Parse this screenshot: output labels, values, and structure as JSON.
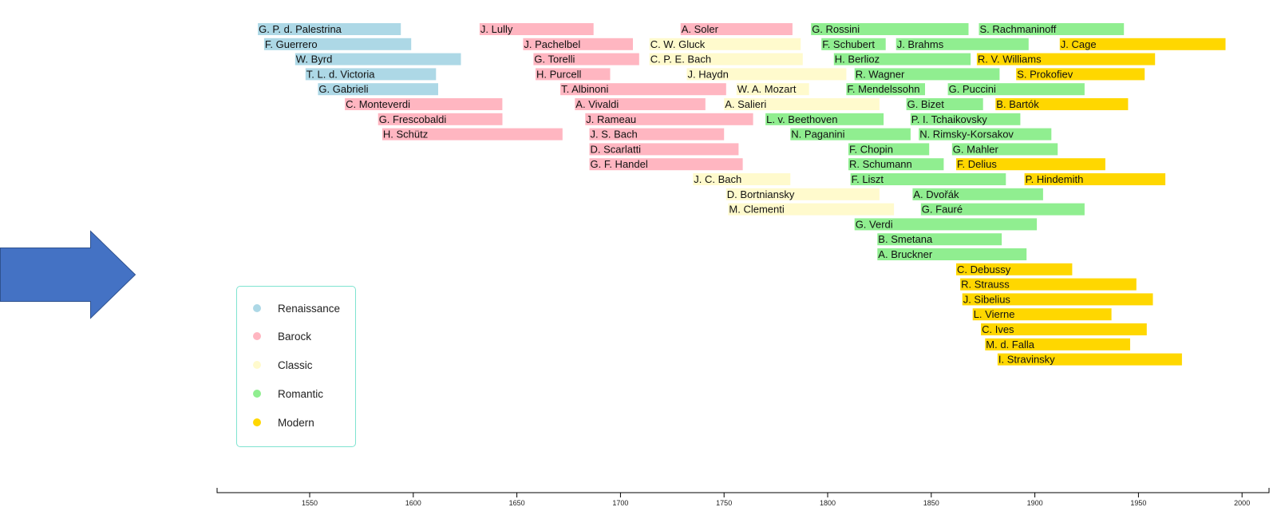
{
  "chart_data": {
    "type": "bar",
    "subtype": "timeline",
    "title": "",
    "xlabel": "",
    "ylabel": "",
    "xlim": [
      1505,
      2012
    ],
    "x_ticks": [
      1550,
      1600,
      1650,
      1700,
      1750,
      1800,
      1850,
      1900,
      1950,
      2000
    ],
    "grid": false,
    "legend_placement": "bottom-left",
    "colors": {
      "Renaissance": "#add8e6",
      "Barock": "#ffb6c1",
      "Classic": "#fffacd",
      "Romantic": "#90ee90",
      "Modern": "#ffd700"
    },
    "legend": [
      "Renaissance",
      "Barock",
      "Classic",
      "Romantic",
      "Modern"
    ],
    "composers": [
      {
        "name": "G. P. d. Palestrina",
        "era": "Renaissance",
        "start": 1525,
        "end": 1594
      },
      {
        "name": "F. Guerrero",
        "era": "Renaissance",
        "start": 1528,
        "end": 1599
      },
      {
        "name": "W. Byrd",
        "era": "Renaissance",
        "start": 1543,
        "end": 1623
      },
      {
        "name": "T. L. d. Victoria",
        "era": "Renaissance",
        "start": 1548,
        "end": 1611
      },
      {
        "name": "G. Gabrieli",
        "era": "Renaissance",
        "start": 1554,
        "end": 1612
      },
      {
        "name": "C. Monteverdi",
        "era": "Barock",
        "start": 1567,
        "end": 1643
      },
      {
        "name": "G. Frescobaldi",
        "era": "Barock",
        "start": 1583,
        "end": 1643
      },
      {
        "name": "H. Schütz",
        "era": "Barock",
        "start": 1585,
        "end": 1672
      },
      {
        "name": "J. Lully",
        "era": "Barock",
        "start": 1632,
        "end": 1687
      },
      {
        "name": "J. Pachelbel",
        "era": "Barock",
        "start": 1653,
        "end": 1706
      },
      {
        "name": "G. Torelli",
        "era": "Barock",
        "start": 1658,
        "end": 1709
      },
      {
        "name": "H. Purcell",
        "era": "Barock",
        "start": 1659,
        "end": 1695
      },
      {
        "name": "T. Albinoni",
        "era": "Barock",
        "start": 1671,
        "end": 1751
      },
      {
        "name": "A. Vivaldi",
        "era": "Barock",
        "start": 1678,
        "end": 1741
      },
      {
        "name": "J. Rameau",
        "era": "Barock",
        "start": 1683,
        "end": 1764
      },
      {
        "name": "J. S. Bach",
        "era": "Barock",
        "start": 1685,
        "end": 1750
      },
      {
        "name": "D. Scarlatti",
        "era": "Barock",
        "start": 1685,
        "end": 1757
      },
      {
        "name": "G. F. Handel",
        "era": "Barock",
        "start": 1685,
        "end": 1759
      },
      {
        "name": "A. Soler",
        "era": "Barock",
        "start": 1729,
        "end": 1783
      },
      {
        "name": "C. W. Gluck",
        "era": "Classic",
        "start": 1714,
        "end": 1787
      },
      {
        "name": "C. P. E. Bach",
        "era": "Classic",
        "start": 1714,
        "end": 1788
      },
      {
        "name": "J. Haydn",
        "era": "Classic",
        "start": 1732,
        "end": 1809
      },
      {
        "name": "J. C. Bach",
        "era": "Classic",
        "start": 1735,
        "end": 1782
      },
      {
        "name": "A. Salieri",
        "era": "Classic",
        "start": 1750,
        "end": 1825
      },
      {
        "name": "D. Bortniansky",
        "era": "Classic",
        "start": 1751,
        "end": 1825
      },
      {
        "name": "M. Clementi",
        "era": "Classic",
        "start": 1752,
        "end": 1832
      },
      {
        "name": "W. A. Mozart",
        "era": "Classic",
        "start": 1756,
        "end": 1791
      },
      {
        "name": "L. v. Beethoven",
        "era": "Romantic",
        "start": 1770,
        "end": 1827
      },
      {
        "name": "N. Paganini",
        "era": "Romantic",
        "start": 1782,
        "end": 1840
      },
      {
        "name": "G. Rossini",
        "era": "Romantic",
        "start": 1792,
        "end": 1868
      },
      {
        "name": "F. Schubert",
        "era": "Romantic",
        "start": 1797,
        "end": 1828
      },
      {
        "name": "H. Berlioz",
        "era": "Romantic",
        "start": 1803,
        "end": 1869
      },
      {
        "name": "F. Mendelssohn",
        "era": "Romantic",
        "start": 1809,
        "end": 1847
      },
      {
        "name": "F. Chopin",
        "era": "Romantic",
        "start": 1810,
        "end": 1849
      },
      {
        "name": "R. Schumann",
        "era": "Romantic",
        "start": 1810,
        "end": 1856
      },
      {
        "name": "F. Liszt",
        "era": "Romantic",
        "start": 1811,
        "end": 1886
      },
      {
        "name": "R. Wagner",
        "era": "Romantic",
        "start": 1813,
        "end": 1883
      },
      {
        "name": "G. Verdi",
        "era": "Romantic",
        "start": 1813,
        "end": 1901
      },
      {
        "name": "B. Smetana",
        "era": "Romantic",
        "start": 1824,
        "end": 1884
      },
      {
        "name": "A. Bruckner",
        "era": "Romantic",
        "start": 1824,
        "end": 1896
      },
      {
        "name": "J. Brahms",
        "era": "Romantic",
        "start": 1833,
        "end": 1897
      },
      {
        "name": "G. Bizet",
        "era": "Romantic",
        "start": 1838,
        "end": 1875
      },
      {
        "name": "P. I. Tchaikovsky",
        "era": "Romantic",
        "start": 1840,
        "end": 1893
      },
      {
        "name": "A. Dvořák",
        "era": "Romantic",
        "start": 1841,
        "end": 1904
      },
      {
        "name": "N. Rimsky-Korsakov",
        "era": "Romantic",
        "start": 1844,
        "end": 1908
      },
      {
        "name": "G. Fauré",
        "era": "Romantic",
        "start": 1845,
        "end": 1924
      },
      {
        "name": "G. Puccini",
        "era": "Romantic",
        "start": 1858,
        "end": 1924
      },
      {
        "name": "G. Mahler",
        "era": "Romantic",
        "start": 1860,
        "end": 1911
      },
      {
        "name": "S. Rachmaninoff",
        "era": "Romantic",
        "start": 1873,
        "end": 1943
      },
      {
        "name": "F. Delius",
        "era": "Modern",
        "start": 1862,
        "end": 1934
      },
      {
        "name": "C. Debussy",
        "era": "Modern",
        "start": 1862,
        "end": 1918
      },
      {
        "name": "R. Strauss",
        "era": "Modern",
        "start": 1864,
        "end": 1949
      },
      {
        "name": "J. Sibelius",
        "era": "Modern",
        "start": 1865,
        "end": 1957
      },
      {
        "name": "L. Vierne",
        "era": "Modern",
        "start": 1870,
        "end": 1937
      },
      {
        "name": "R. V. Williams",
        "era": "Modern",
        "start": 1872,
        "end": 1958
      },
      {
        "name": "C. Ives",
        "era": "Modern",
        "start": 1874,
        "end": 1954
      },
      {
        "name": "M. d. Falla",
        "era": "Modern",
        "start": 1876,
        "end": 1946
      },
      {
        "name": "B. Bartók",
        "era": "Modern",
        "start": 1881,
        "end": 1945
      },
      {
        "name": "I. Stravinsky",
        "era": "Modern",
        "start": 1882,
        "end": 1971
      },
      {
        "name": "S. Prokofiev",
        "era": "Modern",
        "start": 1891,
        "end": 1953
      },
      {
        "name": "P. Hindemith",
        "era": "Modern",
        "start": 1895,
        "end": 1963
      },
      {
        "name": "J. Cage",
        "era": "Modern",
        "start": 1912,
        "end": 1992
      }
    ]
  }
}
